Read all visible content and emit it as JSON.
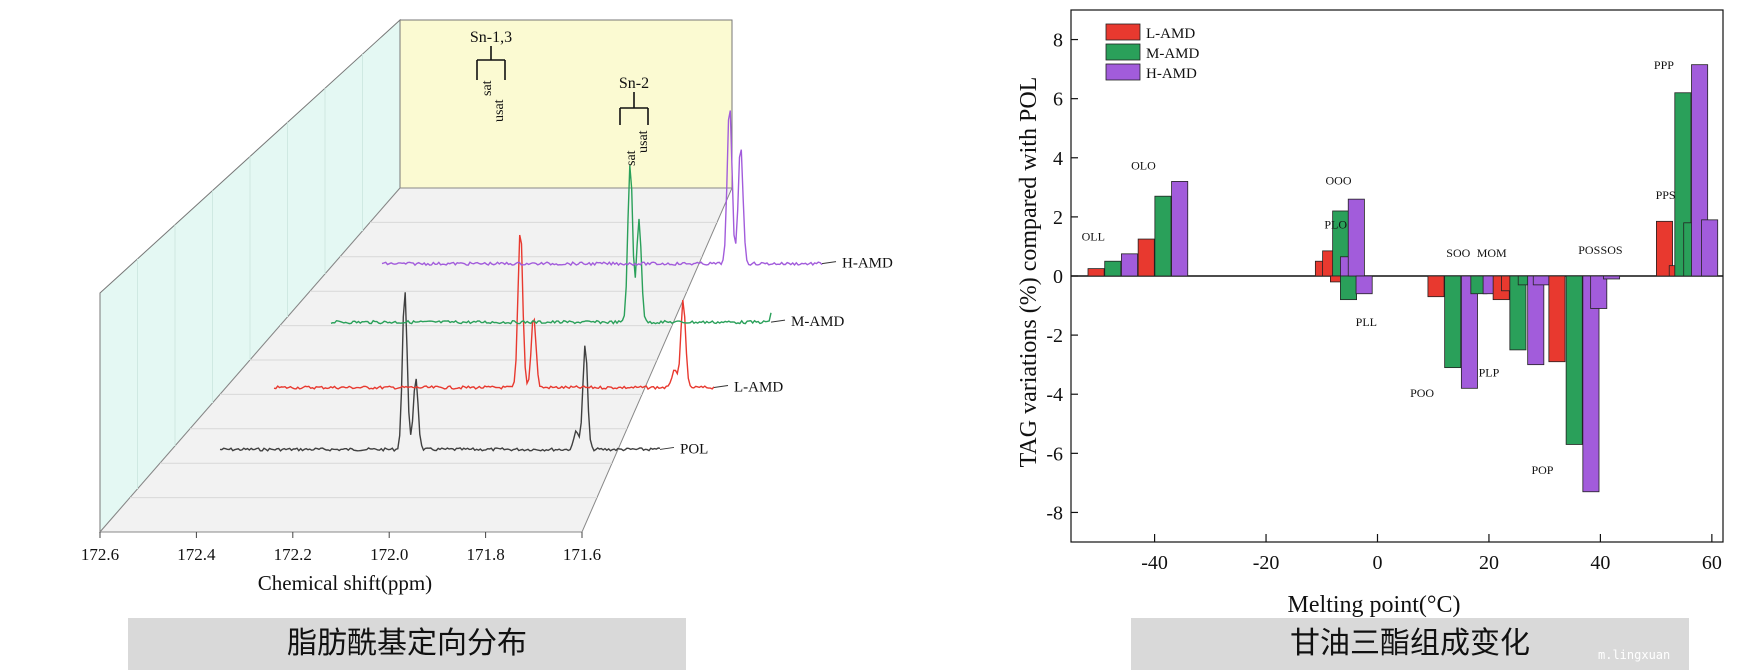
{
  "captions": {
    "left": "脂肪酰基定向分布",
    "right": "甘油三酯组成变化"
  },
  "watermark": "m.lingxuan",
  "chart_data": [
    {
      "type": "line",
      "style": "3d-waterfall",
      "xlabel": "Chemical shift(ppm)",
      "xlim": [
        172.6,
        171.6
      ],
      "x_ticks": [
        "172.6",
        "172.4",
        "172.2",
        "172.0",
        "171.8",
        "171.6"
      ],
      "series": [
        {
          "name": "POL",
          "color": "#404040",
          "peaks": [
            {
              "x": 172.18,
              "h": 1.0
            },
            {
              "x": 172.155,
              "h": 0.45
            },
            {
              "x": 171.77,
              "h": 0.65
            },
            {
              "x": 171.79,
              "h": 0.12
            }
          ]
        },
        {
          "name": "L-AMD",
          "color": "#e8392f",
          "peaks": [
            {
              "x": 172.04,
              "h": 1.0
            },
            {
              "x": 172.01,
              "h": 0.45
            },
            {
              "x": 171.67,
              "h": 0.55
            },
            {
              "x": 171.69,
              "h": 0.12
            }
          ]
        },
        {
          "name": "M-AMD",
          "color": "#2aa05a",
          "peaks": [
            {
              "x": 171.92,
              "h": 1.0
            },
            {
              "x": 171.9,
              "h": 0.65
            },
            {
              "x": 171.57,
              "h": 0.55
            },
            {
              "x": 171.59,
              "h": 0.35
            }
          ]
        },
        {
          "name": "H-AMD",
          "color": "#a25cdb",
          "peaks": [
            {
              "x": 171.81,
              "h": 1.0
            },
            {
              "x": 171.785,
              "h": 0.75
            },
            {
              "x": 171.45,
              "h": 0.4
            },
            {
              "x": 171.43,
              "h": 0.45
            }
          ]
        }
      ],
      "annotations": [
        {
          "label": "Sn-1,3",
          "sub": [
            "sat",
            "usat"
          ]
        },
        {
          "label": "Sn-2",
          "sub": [
            "sat",
            "usat"
          ]
        }
      ]
    },
    {
      "type": "bar",
      "xlabel": "Melting point(°C)",
      "ylabel": "TAG variations (%) compared with POL",
      "xlim": [
        -55,
        62
      ],
      "ylim": [
        -9,
        9
      ],
      "x_ticks": [
        -40,
        -20,
        0,
        20,
        40,
        60
      ],
      "y_ticks": [
        8,
        6,
        4,
        2,
        0,
        -2,
        -4,
        -6,
        -8
      ],
      "legend": {
        "position": "top-left",
        "entries": [
          "L-AMD",
          "M-AMD",
          "H-AMD"
        ]
      },
      "series_colors": {
        "L-AMD": "#e8392f",
        "M-AMD": "#2aa05a",
        "H-AMD": "#a25cdb"
      },
      "bars": [
        {
          "x": -50.5,
          "series": "L-AMD",
          "value": 0.25
        },
        {
          "x": -47.5,
          "series": "M-AMD",
          "value": 0.5
        },
        {
          "x": -44.5,
          "series": "H-AMD",
          "value": 0.75
        },
        {
          "x": -41.5,
          "series": "L-AMD",
          "value": 1.25
        },
        {
          "x": -38.5,
          "series": "M-AMD",
          "value": 2.7
        },
        {
          "x": -35.5,
          "series": "H-AMD",
          "value": 3.2
        },
        {
          "x": -9.7,
          "series": "L-AMD",
          "value": 0.5
        },
        {
          "x": -8.4,
          "series": "L-AMD",
          "value": 0.85
        },
        {
          "x": -6.6,
          "series": "M-AMD",
          "value": 2.2
        },
        {
          "x": -7.0,
          "series": "L-AMD",
          "value": -0.2
        },
        {
          "x": -5.2,
          "series": "H-AMD",
          "value": 0.65
        },
        {
          "x": -5.2,
          "series": "M-AMD",
          "value": -0.8
        },
        {
          "x": -3.8,
          "series": "H-AMD",
          "value": 2.6
        },
        {
          "x": -2.4,
          "series": "H-AMD",
          "value": -0.6
        },
        {
          "x": 10.5,
          "series": "L-AMD",
          "value": -0.7
        },
        {
          "x": 13.5,
          "series": "M-AMD",
          "value": -3.1
        },
        {
          "x": 16.5,
          "series": "H-AMD",
          "value": -3.8
        },
        {
          "x": 18.2,
          "series": "M-AMD",
          "value": -0.6
        },
        {
          "x": 20.4,
          "series": "H-AMD",
          "value": -0.6
        },
        {
          "x": 22.2,
          "series": "L-AMD",
          "value": -0.8
        },
        {
          "x": 23.7,
          "series": "L-AMD",
          "value": -0.5
        },
        {
          "x": 25.2,
          "series": "M-AMD",
          "value": -2.5
        },
        {
          "x": 26.7,
          "series": "M-AMD",
          "value": -0.3
        },
        {
          "x": 28.4,
          "series": "H-AMD",
          "value": -3.0
        },
        {
          "x": 29.4,
          "series": "H-AMD",
          "value": -0.3
        },
        {
          "x": 32.2,
          "series": "L-AMD",
          "value": -2.9
        },
        {
          "x": 35.3,
          "series": "M-AMD",
          "value": -5.7
        },
        {
          "x": 38.3,
          "series": "H-AMD",
          "value": -7.3
        },
        {
          "x": 39.7,
          "series": "H-AMD",
          "value": -1.1
        },
        {
          "x": 42.0,
          "series": "H-AMD",
          "value": -0.1
        },
        {
          "x": 51.5,
          "series": "L-AMD",
          "value": 1.85
        },
        {
          "x": 53.8,
          "series": "L-AMD",
          "value": 0.35
        },
        {
          "x": 54.8,
          "series": "M-AMD",
          "value": 6.2
        },
        {
          "x": 56.4,
          "series": "M-AMD",
          "value": 1.8
        },
        {
          "x": 57.8,
          "series": "H-AMD",
          "value": 7.15
        },
        {
          "x": 59.6,
          "series": "H-AMD",
          "value": 1.9
        }
      ],
      "labels": [
        {
          "text": "OLL",
          "x": -51,
          "y": 1.2
        },
        {
          "text": "OLO",
          "x": -42,
          "y": 3.6
        },
        {
          "text": "OOO",
          "x": -7,
          "y": 3.1
        },
        {
          "text": "PLO",
          "x": -7.5,
          "y": 1.6
        },
        {
          "text": "PLL",
          "x": -2,
          "y": -1.7
        },
        {
          "text": "POO",
          "x": 8,
          "y": -4.1
        },
        {
          "text": "SOO",
          "x": 14.5,
          "y": 0.65
        },
        {
          "text": "MOM",
          "x": 20.5,
          "y": 0.65
        },
        {
          "text": "PLP",
          "x": 20,
          "y": -3.4
        },
        {
          "text": "POS",
          "x": 38,
          "y": 0.75
        },
        {
          "text": "SOS",
          "x": 42,
          "y": 0.75
        },
        {
          "text": "POP",
          "x": 29.6,
          "y": -6.7
        },
        {
          "text": "PPP",
          "x": 51.4,
          "y": 7.0
        },
        {
          "text": "PPS",
          "x": 51.7,
          "y": 2.6
        }
      ]
    }
  ]
}
